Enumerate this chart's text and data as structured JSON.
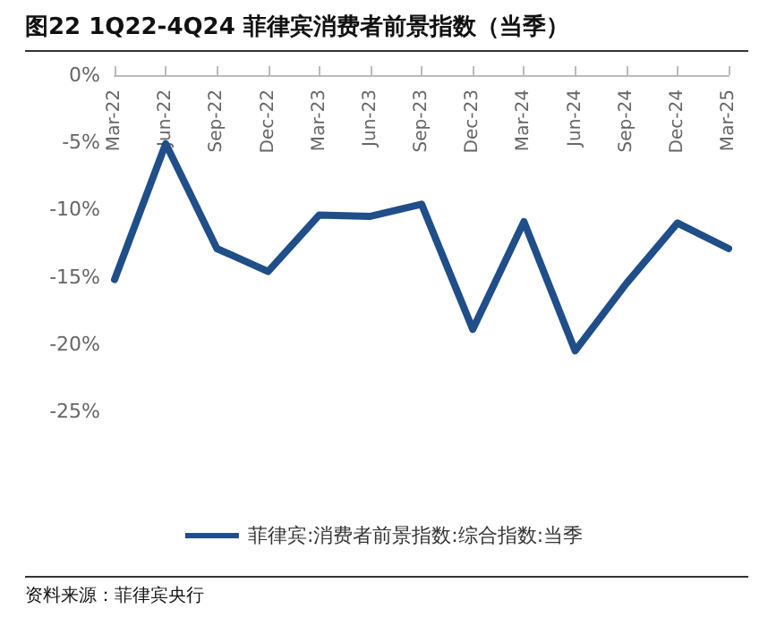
{
  "chart_data": {
    "type": "line",
    "title": "图22  1Q22-4Q24 菲律宾消费者前景指数（当季）",
    "categories": [
      "Mar-22",
      "Jun-22",
      "Sep-22",
      "Dec-22",
      "Mar-23",
      "Jun-23",
      "Sep-23",
      "Dec-23",
      "Mar-24",
      "Jun-24",
      "Sep-24",
      "Dec-24",
      "Mar-25"
    ],
    "series": [
      {
        "name": "菲律宾:消费者前景指数:综合指数:当季",
        "color": "#1f4e89",
        "values": [
          -15.2,
          -5.1,
          -12.9,
          -14.6,
          -10.4,
          -10.5,
          -9.6,
          -18.9,
          -10.9,
          -20.5,
          -15.5,
          -11.0,
          -12.9
        ]
      }
    ],
    "ylim": [
      -25,
      0
    ],
    "yticks": [
      {
        "value": -25,
        "label": "-25%"
      },
      {
        "value": -20,
        "label": "-20%"
      },
      {
        "value": -15,
        "label": "-15%"
      },
      {
        "value": -10,
        "label": "-10%"
      },
      {
        "value": -5,
        "label": "-5%"
      },
      {
        "value": 0,
        "label": "0%"
      }
    ],
    "grid": false,
    "legend": "bottom",
    "marker": "none",
    "line_style": "solid",
    "annotations": [
      "资料来源：菲律宾央行"
    ]
  }
}
